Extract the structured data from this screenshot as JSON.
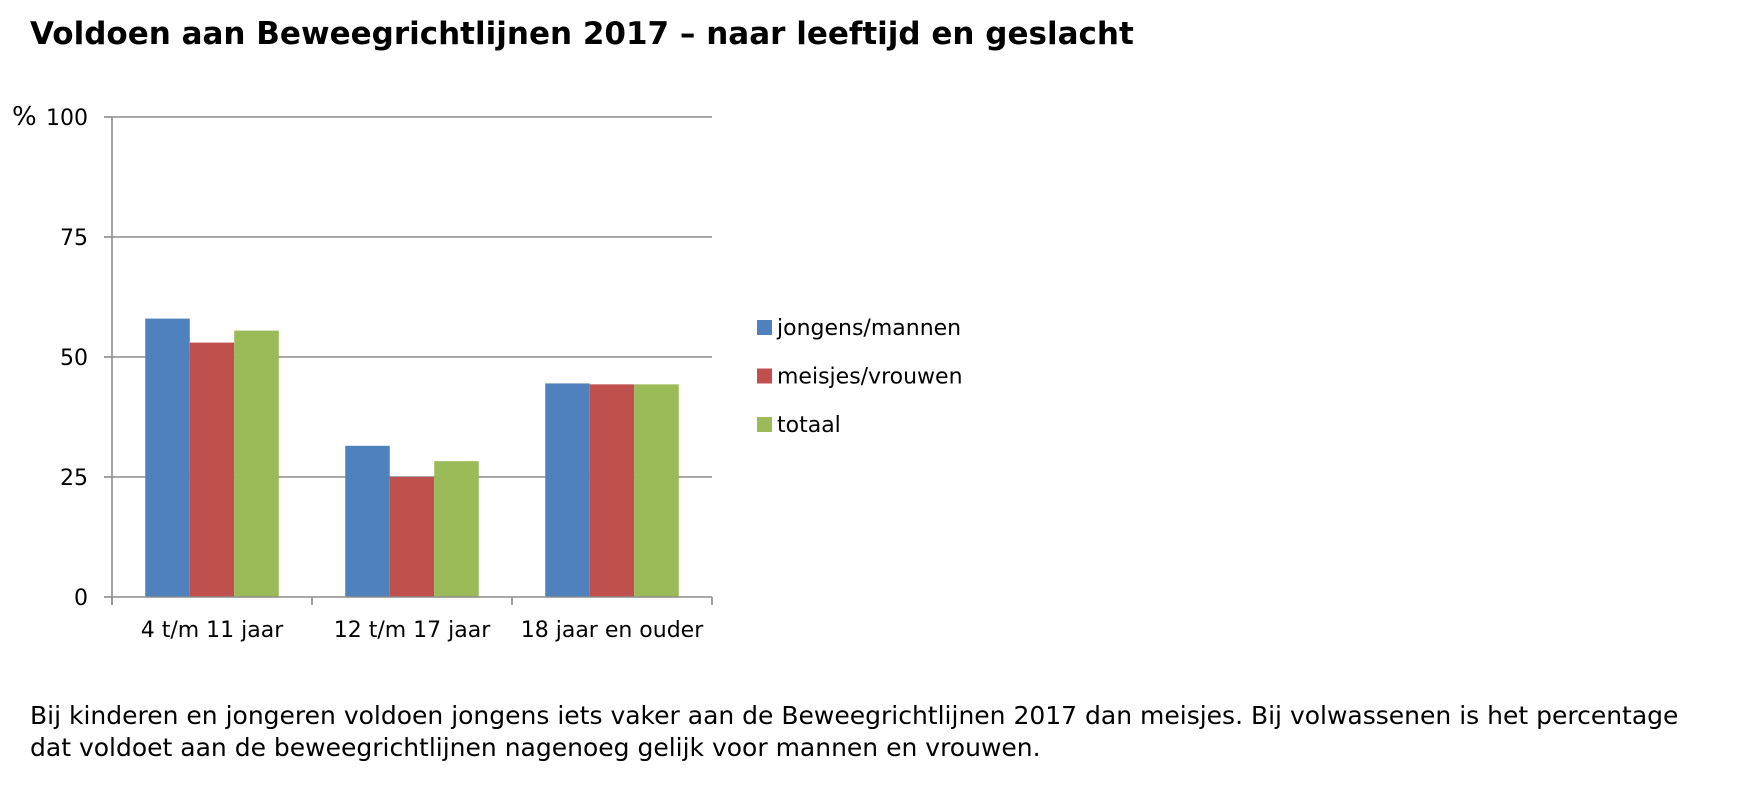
{
  "page": {
    "title": "Voldoen aan Beweegrichtlijnen 2017 – naar leeftijd en geslacht",
    "caption": "Bij kinderen en jongeren voldoen jongens iets vaker aan de Beweegrichtlijnen 2017 dan meisjes. Bij volwassenen is het percentage dat voldoet aan de beweegrichtlijnen nagenoeg gelijk voor mannen en vrouwen."
  },
  "chart_data": {
    "type": "bar",
    "title": "Voldoen aan Beweegrichtlijnen 2017 – naar leeftijd en geslacht",
    "xlabel": "",
    "ylabel": "%",
    "ylim": [
      0,
      100
    ],
    "yticks": [
      0,
      25,
      50,
      75,
      100
    ],
    "grid": true,
    "legend_position": "right",
    "categories": [
      "4 t/m 11 jaar",
      "12 t/m 17 jaar",
      "18 jaar en ouder"
    ],
    "series": [
      {
        "name": "jongens/mannen",
        "color": "#4f81bd",
        "values": [
          58,
          31.5,
          44.5
        ]
      },
      {
        "name": "meisjes/vrouwen",
        "color": "#c0504d",
        "values": [
          53,
          25,
          44.3
        ]
      },
      {
        "name": "totaal",
        "color": "#9bbb59",
        "values": [
          55.5,
          28.3,
          44.3
        ]
      }
    ]
  }
}
